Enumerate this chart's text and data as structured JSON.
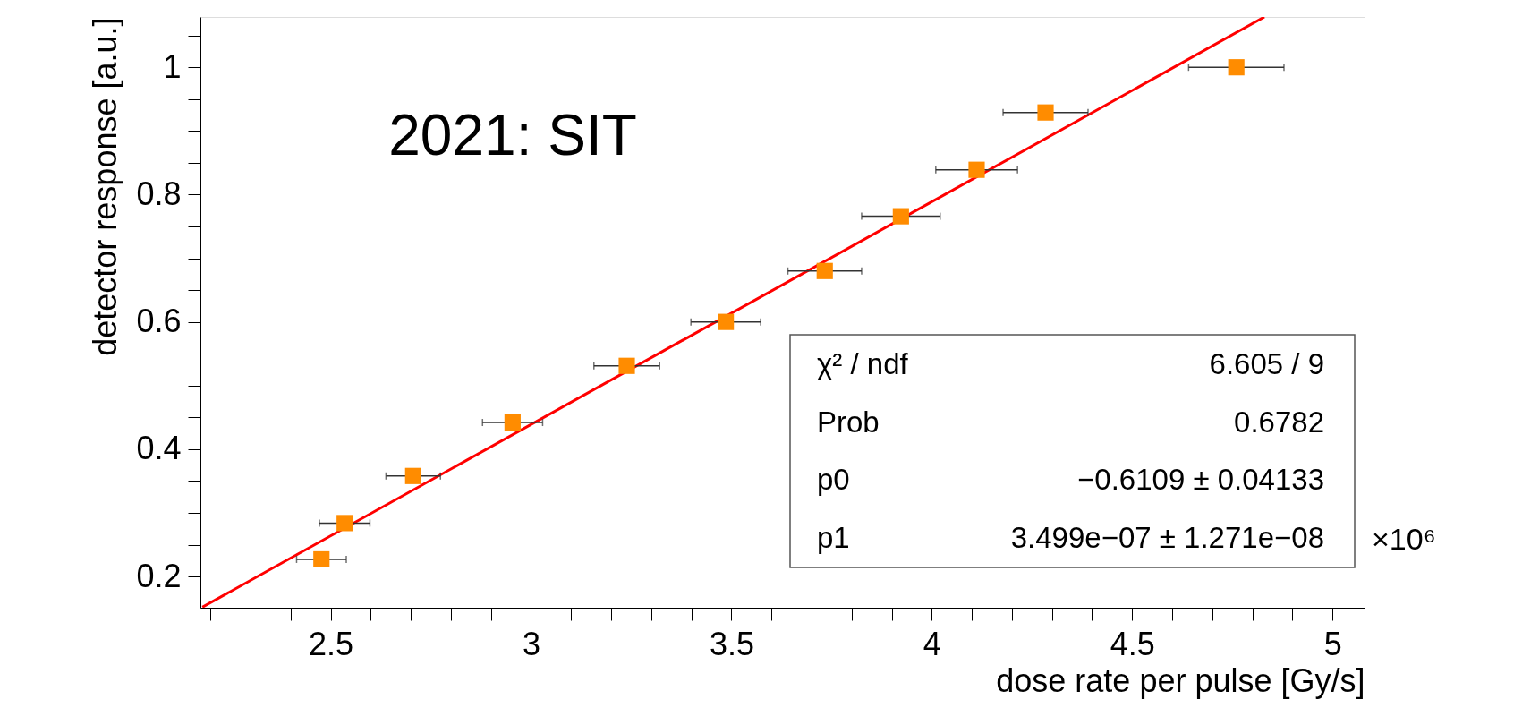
{
  "chart_data": {
    "type": "scatter",
    "xlabel": "dose rate per pulse [Gy/s]",
    "ylabel": "detector response [a.u.]",
    "annotations": [
      "2021: SIT",
      "×10⁶",
      "χ² / ndf",
      "6.605 / 9",
      "Prob",
      "0.6782",
      "p0",
      "−0.6109 ± 0.04133",
      "p1",
      "3.499e−07 ± 1.271e−08"
    ],
    "series": [
      {
        "type": "line",
        "color": "#ff0000",
        "line_style": "solid",
        "x": [
          2.18,
          4.83
        ],
        "values": [
          0.152,
          1.079
        ]
      },
      {
        "color": "#ff8c00",
        "marker": "square",
        "x": [
          2.477,
          2.535,
          2.706,
          2.954,
          3.239,
          3.486,
          3.733,
          3.923,
          4.112,
          4.284,
          4.76
        ],
        "values": [
          0.227,
          0.284,
          0.358,
          0.442,
          0.531,
          0.6,
          0.68,
          0.766,
          0.839,
          0.929,
          1.0
        ],
        "xerrors": [
          0.062,
          0.063,
          0.068,
          0.075,
          0.082,
          0.087,
          0.092,
          0.098,
          0.102,
          0.106,
          0.119
        ]
      }
    ],
    "xlim": [
      2.175,
      5.08
    ],
    "ylim": [
      0.151,
      1.079
    ],
    "xticks": [
      {
        "value": 2.2,
        "label": null
      },
      {
        "value": 2.3,
        "label": null
      },
      {
        "value": 2.4,
        "label": null
      },
      2.5,
      {
        "value": 2.6,
        "label": null
      },
      {
        "value": 2.7,
        "label": null
      },
      {
        "value": 2.8,
        "label": null
      },
      {
        "value": 2.9,
        "label": null
      },
      3,
      {
        "value": 3.1,
        "label": null
      },
      {
        "value": 3.2,
        "label": null
      },
      {
        "value": 3.3,
        "label": null
      },
      {
        "value": 3.4,
        "label": null
      },
      3.5,
      {
        "value": 3.6,
        "label": null
      },
      {
        "value": 3.7,
        "label": null
      },
      {
        "value": 3.8,
        "label": null
      },
      {
        "value": 3.9,
        "label": null
      },
      4,
      {
        "value": 4.1,
        "label": null
      },
      {
        "value": 4.2,
        "label": null
      },
      {
        "value": 4.3,
        "label": null
      },
      {
        "value": 4.4,
        "label": null
      },
      4.5,
      {
        "value": 4.6,
        "label": null
      },
      {
        "value": 4.7,
        "label": null
      },
      {
        "value": 4.8,
        "label": null
      },
      {
        "value": 4.9,
        "label": null
      },
      5
    ],
    "yticks": [
      0.2,
      {
        "value": 0.25,
        "label": null
      },
      {
        "value": 0.3,
        "label": null
      },
      {
        "value": 0.35,
        "label": null
      },
      0.4,
      {
        "value": 0.45,
        "label": null
      },
      {
        "value": 0.5,
        "label": null
      },
      {
        "value": 0.55,
        "label": null
      },
      0.6,
      {
        "value": 0.65,
        "label": null
      },
      {
        "value": 0.7,
        "label": null
      },
      {
        "value": 0.75,
        "label": null
      },
      0.8,
      {
        "value": 0.85,
        "label": null
      },
      {
        "value": 0.9,
        "label": null
      },
      {
        "value": 0.95,
        "label": null
      },
      1,
      {
        "value": 1.05,
        "label": null
      }
    ],
    "grid": false
  }
}
